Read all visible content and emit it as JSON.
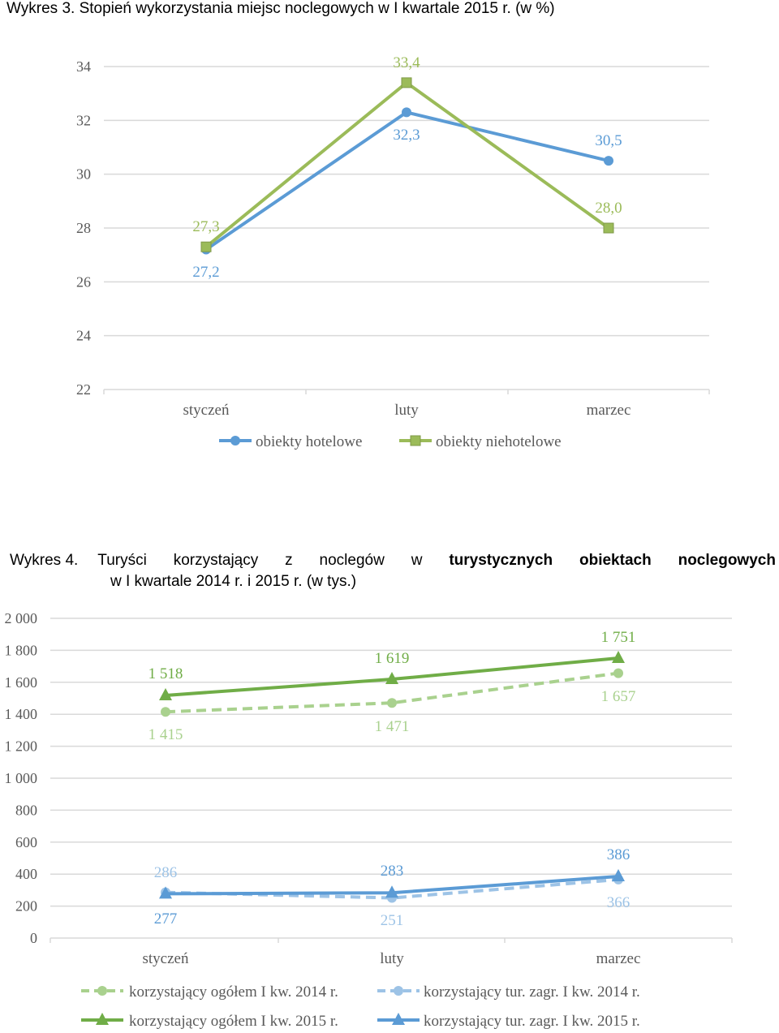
{
  "chart3": {
    "caption": "Wykres 3.  Stopień wykorzystania miejsc noclegowych w I kwartale 2015 r. (w %)"
  },
  "chart4": {
    "caption_num": "Wykres 4.",
    "caption_words": [
      "Turyści",
      "korzystający",
      "z",
      "noclegów",
      "w"
    ],
    "caption_bold_words": [
      "turystycznych",
      "obiektach",
      "noclegowych"
    ],
    "caption_line2": "w I  kwartale 2014 r. i 2015 r. (w tys.)"
  },
  "colors": {
    "blue": "#5b9bd5",
    "green": "#9bbb59",
    "green_dark": "#70ad47",
    "green_light": "#a9d18e",
    "blue_dark": "#5b9bd5",
    "blue_light": "#9dc3e6",
    "grid": "#d9d9d9",
    "axis_text": "#595959"
  },
  "chart_data": [
    {
      "type": "line",
      "title": "Wykres 3.  Stopień wykorzystania miejsc noclegowych w I kwartale 2015 r. (w %)",
      "categories": [
        "styczeń",
        "luty",
        "marzec"
      ],
      "ylim": [
        22,
        34
      ],
      "yticks": [
        "22",
        "24",
        "26",
        "28",
        "30",
        "32",
        "34"
      ],
      "series": [
        {
          "name": "obiekty hotelowe",
          "values": [
            27.2,
            32.3,
            30.5
          ],
          "labels": [
            "27,2",
            "32,3",
            "30,5"
          ],
          "color": "#5b9bd5",
          "marker": "circle"
        },
        {
          "name": "obiekty niehotelowe",
          "values": [
            27.3,
            33.4,
            28.0
          ],
          "labels": [
            "27,3",
            "33,4",
            "28,0"
          ],
          "color": "#9bbb59",
          "marker": "square"
        }
      ],
      "grid": true,
      "legend": "bottom"
    },
    {
      "type": "line",
      "title": "Wykres 4. Turyści korzystający z noclegów w turystycznych obiektach noclegowych w I  kwartale 2014 r. i 2015 r. (w tys.)",
      "categories": [
        "styczeń",
        "luty",
        "marzec"
      ],
      "ylim": [
        0,
        2000
      ],
      "yticks": [
        "0",
        "200",
        "400",
        "600",
        "800",
        "1 000",
        "1 200",
        "1 400",
        "1 600",
        "1 800",
        "2 000"
      ],
      "series": [
        {
          "name": "korzystający ogółem I kw. 2014 r.",
          "values": [
            1415,
            1471,
            1657
          ],
          "labels": [
            "1 415",
            "1 471",
            "1 657"
          ],
          "color": "#a9d18e",
          "marker": "circle",
          "dashed": true
        },
        {
          "name": "korzystający tur. zagr. I kw. 2014 r.",
          "values": [
            286,
            251,
            366
          ],
          "labels": [
            "286",
            "251",
            "366"
          ],
          "color": "#9dc3e6",
          "marker": "circle",
          "dashed": true
        },
        {
          "name": "korzystający ogółem I kw. 2015 r.",
          "values": [
            1518,
            1619,
            1751
          ],
          "labels": [
            "1 518",
            "1 619",
            "1 751"
          ],
          "color": "#70ad47",
          "marker": "triangle",
          "dashed": false
        },
        {
          "name": "korzystający tur. zagr. I kw. 2015 r.",
          "values": [
            277,
            283,
            386
          ],
          "labels": [
            "277",
            "283",
            "386"
          ],
          "color": "#5b9bd5",
          "marker": "triangle",
          "dashed": false
        }
      ],
      "grid": true,
      "legend": "bottom"
    }
  ]
}
